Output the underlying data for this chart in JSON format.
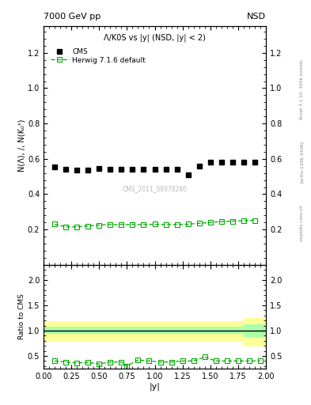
{
  "title_top_left": "7000 GeV pp",
  "title_top_right": "NSD",
  "main_title": "Λ/K0S vs |y| (NSD, |y| < 2)",
  "ylabel_main": "N(Λ), /, N(K₀ˢ)",
  "ylabel_ratio": "Ratio to CMS",
  "xlabel": "|y|",
  "watermark": "CMS_2011_S8978280",
  "rivet_label": "Rivet 3.1.10, 100k events",
  "arxiv_label": "[arXiv:1306.3436]",
  "mcplots_label": "mcplots.cern.ch",
  "cms_x": [
    0.1,
    0.2,
    0.3,
    0.4,
    0.5,
    0.6,
    0.7,
    0.8,
    0.9,
    1.0,
    1.1,
    1.2,
    1.3,
    1.4,
    1.5,
    1.6,
    1.7,
    1.8,
    1.9
  ],
  "cms_y": [
    0.555,
    0.54,
    0.535,
    0.535,
    0.545,
    0.54,
    0.54,
    0.54,
    0.54,
    0.543,
    0.54,
    0.54,
    0.51,
    0.56,
    0.58,
    0.58,
    0.58,
    0.58,
    0.582
  ],
  "herwig_x": [
    0.1,
    0.2,
    0.3,
    0.4,
    0.5,
    0.6,
    0.7,
    0.8,
    0.9,
    1.0,
    1.1,
    1.2,
    1.3,
    1.4,
    1.5,
    1.6,
    1.7,
    1.8,
    1.9
  ],
  "herwig_y": [
    0.23,
    0.215,
    0.215,
    0.22,
    0.225,
    0.228,
    0.228,
    0.228,
    0.228,
    0.23,
    0.228,
    0.228,
    0.23,
    0.235,
    0.24,
    0.245,
    0.247,
    0.25,
    0.252
  ],
  "ratio_herwig_x": [
    0.1,
    0.2,
    0.3,
    0.4,
    0.5,
    0.6,
    0.7,
    0.75,
    0.85,
    0.95,
    1.05,
    1.15,
    1.25,
    1.35,
    1.45,
    1.55,
    1.65,
    1.75,
    1.85,
    1.95
  ],
  "ratio_herwig_y": [
    0.4,
    0.38,
    0.36,
    0.37,
    0.34,
    0.38,
    0.38,
    0.3,
    0.42,
    0.4,
    0.38,
    0.38,
    0.4,
    0.4,
    0.48,
    0.4,
    0.4,
    0.4,
    0.4,
    0.4
  ],
  "ylim_main": [
    0.0,
    1.35
  ],
  "ylim_ratio": [
    0.25,
    2.3
  ],
  "xlim": [
    0.0,
    2.0
  ],
  "color_cms": "black",
  "color_herwig": "#00aa00",
  "color_yellow": "#ffff99",
  "color_green": "#aaffaa",
  "background_color": "white",
  "yticks_main": [
    0.2,
    0.4,
    0.6,
    0.8,
    1.0,
    1.2
  ],
  "yticks_ratio": [
    0.5,
    1.0,
    1.5,
    2.0
  ]
}
